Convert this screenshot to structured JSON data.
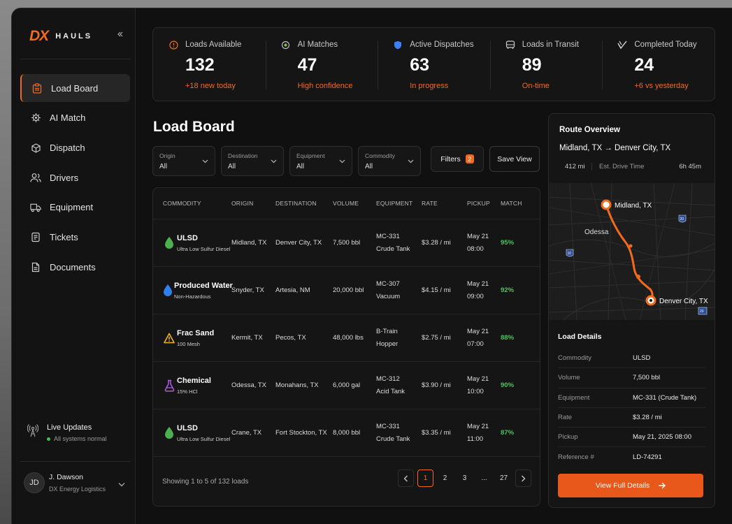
{
  "brand": {
    "mark_a": "D",
    "mark_b": "X",
    "text": "HAULS"
  },
  "sidebar": {
    "items": [
      {
        "label": "Load Board",
        "icon": "clipboard-icon"
      },
      {
        "label": "AI Match",
        "icon": "ai-chip-icon"
      },
      {
        "label": "Dispatch",
        "icon": "box-icon"
      },
      {
        "label": "Drivers",
        "icon": "users-icon"
      },
      {
        "label": "Equipment",
        "icon": "truck-icon"
      },
      {
        "label": "Tickets",
        "icon": "ticket-icon"
      },
      {
        "label": "Documents",
        "icon": "document-icon"
      }
    ],
    "live": {
      "title": "Live Updates",
      "status": "All systems normal"
    },
    "user": {
      "initials": "JD",
      "name": "J. Dawson",
      "org": "DX Energy Logistics"
    }
  },
  "stats": [
    {
      "label": "Loads Available",
      "value": "132",
      "sub": "+18 new today"
    },
    {
      "label": "AI Matches",
      "value": "47",
      "sub": "High confidence"
    },
    {
      "label": "Active Dispatches",
      "value": "63",
      "sub": "In progress"
    },
    {
      "label": "Loads in Transit",
      "value": "89",
      "sub": "On-time"
    },
    {
      "label": "Completed Today",
      "value": "24",
      "sub": "+6 vs yesterday"
    }
  ],
  "board": {
    "title": "Load Board",
    "filters": [
      {
        "label": "Origin",
        "value": "All"
      },
      {
        "label": "Destination",
        "value": "All"
      },
      {
        "label": "Equipment",
        "value": "All"
      },
      {
        "label": "Commodity",
        "value": "All"
      }
    ],
    "filters_button": "Filters",
    "filters_count": "2",
    "save_view": "Save View",
    "columns": [
      "COMMODITY",
      "ORIGIN",
      "DESTINATION",
      "VOLUME",
      "EQUIPMENT",
      "RATE",
      "PICKUP",
      "MATCH"
    ],
    "rows": [
      {
        "name": "ULSD",
        "sub": "Ultra Low Sulfur Diesel",
        "origin": "Midland, TX",
        "dest": "Denver City, TX",
        "volume": "7,500 bbl",
        "equip1": "MC-331",
        "equip2": "Crude Tank",
        "rate": "$3.28 / mi",
        "date": "May 21",
        "time": "08:00",
        "match": "95%"
      },
      {
        "name": "Produced Water",
        "sub": "Non-Hazardous",
        "origin": "Snyder, TX",
        "dest": "Artesia, NM",
        "volume": "20,000 bbl",
        "equip1": "MC-307",
        "equip2": "Vacuum",
        "rate": "$4.15 / mi",
        "date": "May 21",
        "time": "09:00",
        "match": "92%"
      },
      {
        "name": "Frac Sand",
        "sub": "100 Mesh",
        "origin": "Kermit, TX",
        "dest": "Pecos, TX",
        "volume": "48,000 lbs",
        "equip1": "B-Train",
        "equip2": "Hopper",
        "rate": "$2.75 / mi",
        "date": "May 21",
        "time": "07:00",
        "match": "88%"
      },
      {
        "name": "Chemical",
        "sub": "15% HCl",
        "origin": "Odessa, TX",
        "dest": "Monahans, TX",
        "volume": "6,000 gal",
        "equip1": "MC-312",
        "equip2": "Acid Tank",
        "rate": "$3.90 / mi",
        "date": "May 21",
        "time": "10:00",
        "match": "90%"
      },
      {
        "name": "ULSD",
        "sub": "Ultra Low Sulfur Diesel",
        "origin": "Crane, TX",
        "dest": "Fort Stockton, TX",
        "volume": "8,000 bbl",
        "equip1": "MC-331",
        "equip2": "Crude Tank",
        "rate": "$3.35 / mi",
        "date": "May 21",
        "time": "11:00",
        "match": "87%"
      }
    ],
    "showing": "Showing 1 to 5 of 132 loads",
    "pages": [
      "1",
      "2",
      "3",
      "...",
      "27"
    ]
  },
  "route": {
    "title": "Route Overview",
    "path": "Midland, TX → Denver City, TX",
    "distance": "412 mi",
    "drive_label": "Est. Drive Time",
    "drive_time": "6h 45m",
    "map": {
      "origin": "Midland, TX",
      "destination": "Denver City, TX",
      "city": "Odessa",
      "shields": [
        "20",
        "10",
        "20"
      ]
    },
    "details_title": "Load Details",
    "details": [
      {
        "k": "Commodity",
        "v": "ULSD"
      },
      {
        "k": "Volume",
        "v": "7,500 bbl"
      },
      {
        "k": "Equipment",
        "v": "MC-331 (Crude Tank)"
      },
      {
        "k": "Rate",
        "v": "$3.28 / mi"
      },
      {
        "k": "Pickup",
        "v": "May 21, 2025 08:00"
      },
      {
        "k": "Reference #",
        "v": "LD-74291"
      }
    ],
    "button": "View Full Details"
  },
  "colors": {
    "accent": "#f26b1d",
    "match_green": "#4cc35d",
    "bg": "#101010"
  }
}
